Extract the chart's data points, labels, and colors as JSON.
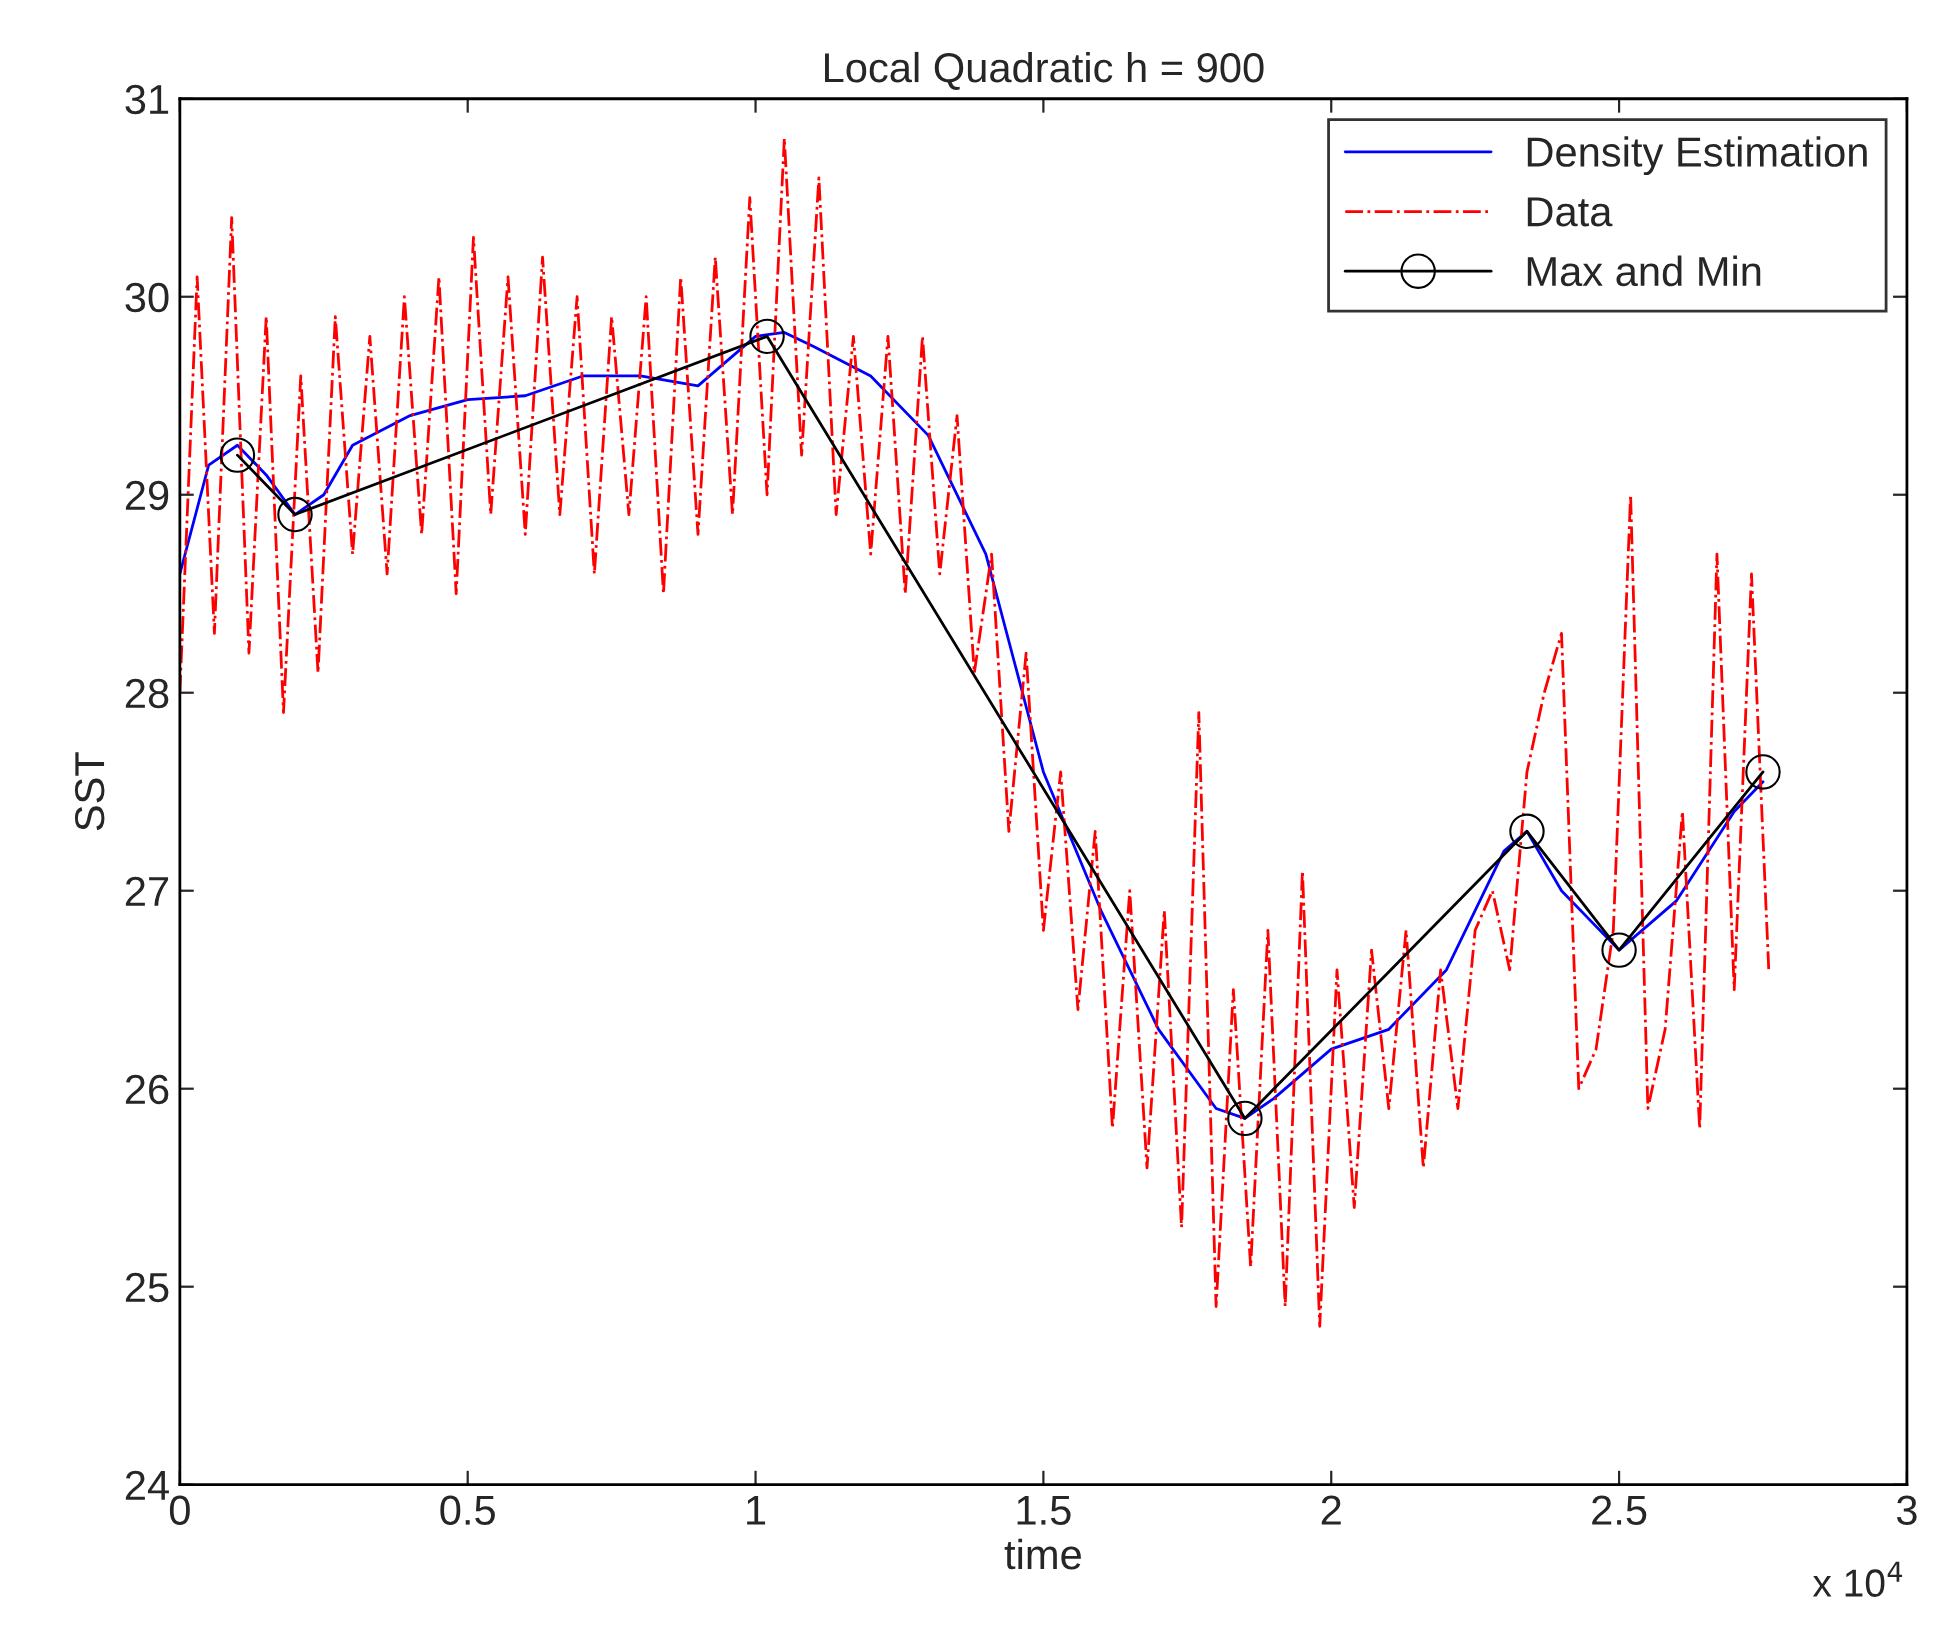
{
  "chart_data": {
    "type": "line",
    "title": "Local Quadratic h = 900",
    "xlabel": "time",
    "ylabel": "SST",
    "annotations": [
      "x 10$^{4}$"
    ],
    "xlim": [
      0,
      3
    ],
    "ylim": [
      24,
      31
    ],
    "xticks": [
      0,
      0.5,
      1,
      1.5,
      2,
      2.5,
      3
    ],
    "yticks": [
      24,
      25,
      26,
      27,
      28,
      29,
      30,
      31
    ],
    "grid": false,
    "legend": "top right",
    "series": [
      {
        "name": "Density Estimation",
        "color": "#0000ff",
        "line_style": "solid",
        "marker": "none",
        "x": [
          0,
          0.05,
          0.1,
          0.15,
          0.2,
          0.25,
          0.3,
          0.4,
          0.5,
          0.6,
          0.7,
          0.8,
          0.9,
          1.0,
          1.05,
          1.1,
          1.2,
          1.3,
          1.4,
          1.5,
          1.6,
          1.7,
          1.8,
          1.85,
          1.9,
          2.0,
          2.1,
          2.2,
          2.3,
          2.34,
          2.4,
          2.5,
          2.6,
          2.7,
          2.75
        ],
        "values": [
          28.6,
          29.15,
          29.25,
          29.1,
          28.9,
          29.0,
          29.25,
          29.4,
          29.48,
          29.5,
          29.6,
          29.6,
          29.55,
          29.8,
          29.82,
          29.75,
          29.6,
          29.3,
          28.7,
          27.6,
          26.9,
          26.3,
          25.9,
          25.85,
          25.95,
          26.2,
          26.3,
          26.6,
          27.2,
          27.3,
          27.0,
          26.7,
          26.95,
          27.4,
          27.55
        ]
      },
      {
        "name": "Data",
        "color": "#ff0000",
        "line_style": "dashdot",
        "marker": "none",
        "x": [
          0,
          0.03,
          0.06,
          0.09,
          0.12,
          0.15,
          0.18,
          0.21,
          0.24,
          0.27,
          0.3,
          0.33,
          0.36,
          0.39,
          0.42,
          0.45,
          0.48,
          0.51,
          0.54,
          0.57,
          0.6,
          0.63,
          0.66,
          0.69,
          0.72,
          0.75,
          0.78,
          0.81,
          0.84,
          0.87,
          0.9,
          0.93,
          0.96,
          0.99,
          1.02,
          1.05,
          1.08,
          1.11,
          1.14,
          1.17,
          1.2,
          1.23,
          1.26,
          1.29,
          1.32,
          1.35,
          1.38,
          1.41,
          1.44,
          1.47,
          1.5,
          1.53,
          1.56,
          1.59,
          1.62,
          1.65,
          1.68,
          1.71,
          1.74,
          1.77,
          1.8,
          1.83,
          1.86,
          1.89,
          1.92,
          1.95,
          1.98,
          2.01,
          2.04,
          2.07,
          2.1,
          2.13,
          2.16,
          2.19,
          2.22,
          2.25,
          2.28,
          2.31,
          2.34,
          2.37,
          2.4,
          2.43,
          2.46,
          2.49,
          2.52,
          2.55,
          2.58,
          2.61,
          2.64,
          2.67,
          2.7,
          2.73,
          2.76
        ],
        "values": [
          28.0,
          30.1,
          28.3,
          30.4,
          28.2,
          29.9,
          27.9,
          29.6,
          28.1,
          29.9,
          28.7,
          29.8,
          28.6,
          30.0,
          28.8,
          30.1,
          28.5,
          30.3,
          28.9,
          30.1,
          28.8,
          30.2,
          28.9,
          30.0,
          28.6,
          29.9,
          28.9,
          30.0,
          28.5,
          30.1,
          28.8,
          30.2,
          28.9,
          30.5,
          29.0,
          30.8,
          29.2,
          30.6,
          28.9,
          29.8,
          28.7,
          29.8,
          28.5,
          29.8,
          28.6,
          29.4,
          28.1,
          28.7,
          27.3,
          28.2,
          26.8,
          27.6,
          26.4,
          27.3,
          25.8,
          27.0,
          25.6,
          26.9,
          25.3,
          27.9,
          24.9,
          26.5,
          25.1,
          26.8,
          24.9,
          27.1,
          24.8,
          26.6,
          25.4,
          26.7,
          25.9,
          26.8,
          25.6,
          26.6,
          25.9,
          26.8,
          27.0,
          26.6,
          27.6,
          28.0,
          28.3,
          26.0,
          26.2,
          26.8,
          29.0,
          25.9,
          26.3,
          27.4,
          25.8,
          28.7,
          26.5,
          28.6,
          26.6
        ]
      },
      {
        "name": "Max and Min",
        "color": "#000000",
        "line_style": "solid",
        "marker": "circle",
        "x": [
          0.1,
          0.2,
          1.02,
          1.85,
          2.34,
          2.5,
          2.75
        ],
        "values": [
          29.2,
          28.9,
          29.8,
          25.85,
          27.3,
          26.7,
          27.6
        ]
      }
    ]
  }
}
